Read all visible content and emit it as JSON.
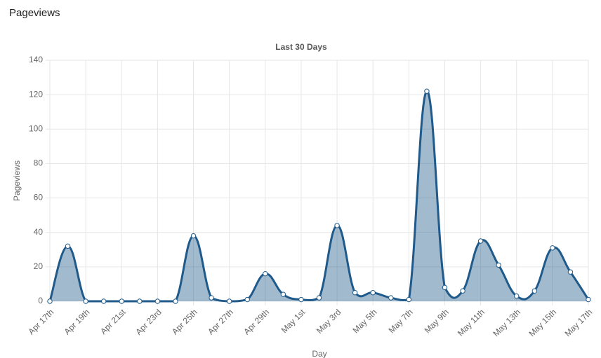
{
  "page_title": "Pageviews",
  "chart_data": {
    "type": "line",
    "title": "Last 30 Days",
    "x_label": "Day",
    "y_label": "Pageviews",
    "categories": [
      "Apr 17th",
      null,
      "Apr 19th",
      null,
      "Apr 21st",
      null,
      "Apr 23rd",
      null,
      "Apr 25th",
      null,
      "Apr 27th",
      null,
      "Apr 29th",
      null,
      "May 1st",
      null,
      "May 3rd",
      null,
      "May 5th",
      null,
      "May 7th",
      null,
      "May 9th",
      null,
      "May 11th",
      null,
      "May 13th",
      null,
      "May 15th",
      null,
      "May 17th"
    ],
    "series": [
      {
        "name": "Pageviews",
        "color": "#1f5a8a",
        "fill": "rgba(31,90,138,0.42)",
        "values": [
          0,
          32,
          0,
          0,
          0,
          0,
          0,
          0,
          38,
          2,
          0,
          1,
          16,
          4,
          1,
          2,
          44,
          5,
          5,
          2,
          1,
          122,
          8,
          6,
          35,
          21,
          3,
          6,
          31,
          17,
          1
        ]
      }
    ],
    "ylim": [
      0,
      140
    ],
    "yticks": [
      0,
      20,
      40,
      60,
      80,
      100,
      120,
      140
    ],
    "grid": true
  }
}
